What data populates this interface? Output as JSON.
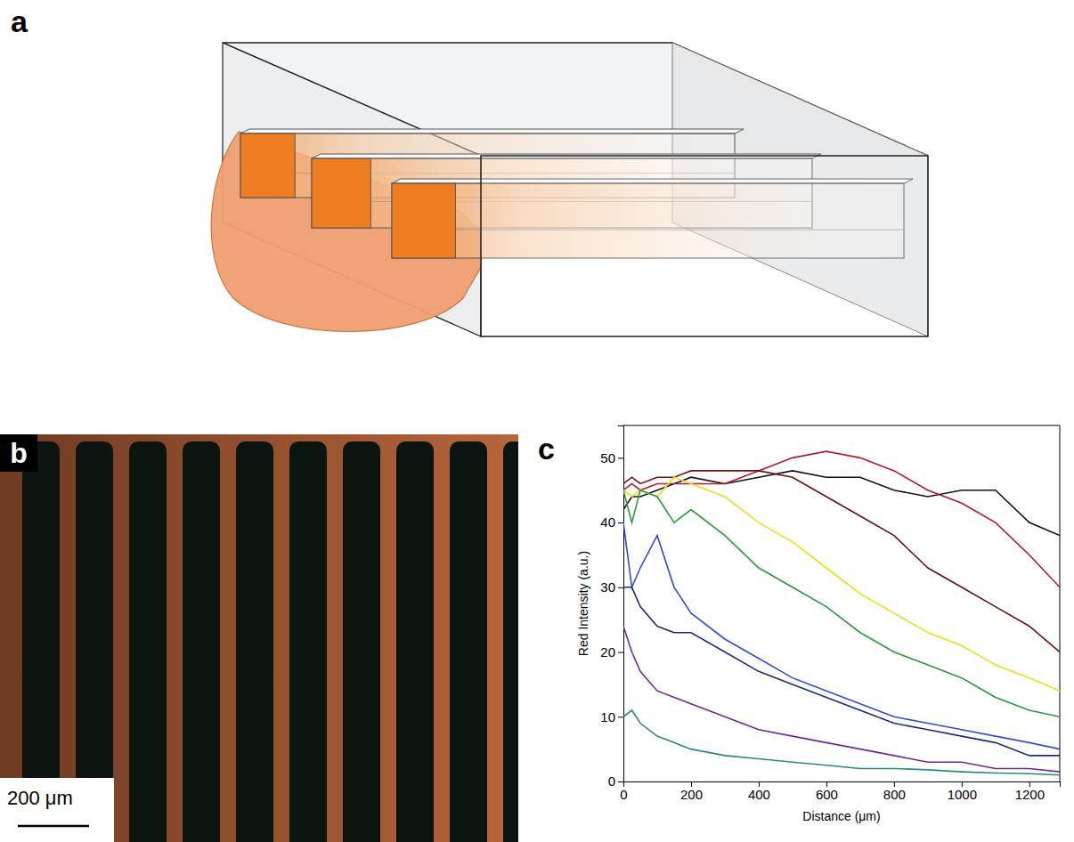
{
  "panels": {
    "a": {
      "label": "a"
    },
    "b": {
      "label": "b",
      "scale_bar": "200 μm"
    },
    "c": {
      "label": "c"
    }
  },
  "chart_data": {
    "type": "line",
    "x_label": "Distance (μm)",
    "y_label": "Red Intensity (a.u.)",
    "x": [
      0,
      25,
      50,
      100,
      150,
      200,
      300,
      400,
      500,
      600,
      700,
      800,
      900,
      1000,
      1100,
      1200,
      1290
    ],
    "xlim": [
      0,
      1290
    ],
    "xticks": [
      0,
      200,
      400,
      600,
      800,
      1000,
      1200
    ],
    "ylim": [
      0,
      55
    ],
    "yticks": [
      0,
      10,
      20,
      30,
      40,
      50
    ],
    "grid": false,
    "series": [
      {
        "color": "#111111",
        "values": [
          42,
          44,
          44,
          45,
          46,
          47,
          46,
          47,
          48,
          47,
          47,
          45,
          44,
          45,
          45,
          40,
          38
        ]
      },
      {
        "color": "#b8162c",
        "values": [
          45,
          46,
          45,
          46,
          46,
          46,
          46,
          48,
          50,
          51,
          50,
          48,
          45,
          43,
          40,
          35,
          30
        ]
      },
      {
        "color": "#6b1212",
        "values": [
          46,
          47,
          46,
          47,
          47,
          48,
          48,
          48,
          47,
          44,
          41,
          38,
          33,
          30,
          27,
          24,
          20
        ]
      },
      {
        "color": "#eedd1a",
        "values": [
          45,
          44,
          45,
          44,
          47,
          46,
          44,
          40,
          37,
          33,
          29,
          26,
          23,
          21,
          18,
          16,
          14
        ]
      },
      {
        "color": "#2a9a3a",
        "values": [
          45,
          40,
          45,
          44,
          40,
          42,
          38,
          33,
          30,
          27,
          23,
          20,
          18,
          16,
          13,
          11,
          10
        ]
      },
      {
        "color": "#2f4fd0",
        "values": [
          40,
          30,
          33,
          38,
          30,
          26,
          22,
          19,
          16,
          14,
          12,
          10,
          9,
          8,
          7,
          6,
          5
        ]
      },
      {
        "color": "#1f2a80",
        "values": [
          30,
          30,
          27,
          24,
          23,
          23,
          20,
          17,
          15,
          13,
          11,
          9,
          8,
          7,
          6,
          4,
          4
        ]
      },
      {
        "color": "#6a2a9a",
        "values": [
          24,
          20,
          17,
          14,
          13,
          12,
          10,
          8,
          7,
          6,
          5,
          4,
          3,
          3,
          2,
          2,
          1.5
        ]
      },
      {
        "color": "#2a8a80",
        "values": [
          10,
          11,
          9,
          7,
          6,
          5,
          4,
          3.5,
          3,
          2.5,
          2,
          2,
          1.8,
          1.5,
          1.3,
          1.2,
          1
        ]
      }
    ]
  }
}
